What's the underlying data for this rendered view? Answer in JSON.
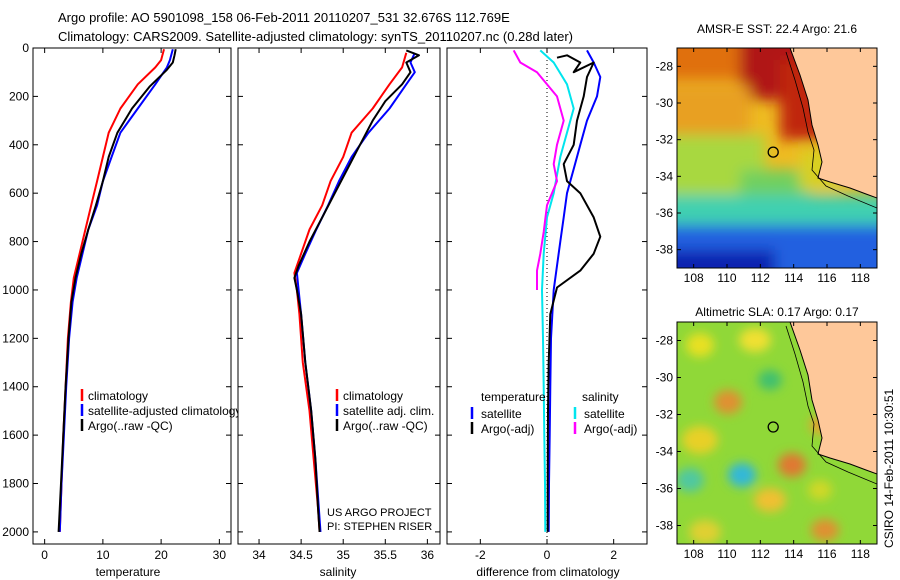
{
  "header": {
    "line1": "Argo profile: AO 5901098_158 06-Feb-2011 20110207_531 32.676S 112.769E",
    "line2": "Climatology: CARS2009. Satellite-adjusted climatology: synTS_20110207.nc (0.28d later)"
  },
  "side_stamp": "CSIRO 14-Feb-2011 10:30:51",
  "credit": {
    "line1": "US ARGO PROJECT",
    "line2": "PI: STEPHEN RISER"
  },
  "colors": {
    "red": "#ff0000",
    "blue": "#0000ff",
    "black": "#000000",
    "cyan": "#00e5ee",
    "magenta": "#ff00ff"
  },
  "chart_data": [
    {
      "type": "line",
      "id": "temperature-profile",
      "xlabel": "temperature",
      "ylabel": "",
      "xlim": [
        -2,
        32
      ],
      "ylim": [
        2050,
        0
      ],
      "xticks": [
        0,
        10,
        20,
        30
      ],
      "yticks": [
        0,
        200,
        400,
        600,
        800,
        1000,
        1200,
        1400,
        1600,
        1800,
        2000
      ],
      "legend": [
        "climatology",
        "satellite-adjusted climatology",
        "Argo(..raw -QC)"
      ],
      "series": [
        {
          "name": "climatology",
          "color": "red",
          "points": [
            [
              20.5,
              5
            ],
            [
              20,
              50
            ],
            [
              19,
              80
            ],
            [
              16,
              150
            ],
            [
              13,
              250
            ],
            [
              11,
              350
            ],
            [
              10,
              450
            ],
            [
              9,
              550
            ],
            [
              8,
              650
            ],
            [
              7,
              750
            ],
            [
              6,
              850
            ],
            [
              5,
              950
            ],
            [
              4.5,
              1050
            ],
            [
              4,
              1200
            ],
            [
              3.6,
              1400
            ],
            [
              3.2,
              1600
            ],
            [
              2.9,
              1800
            ],
            [
              2.6,
              2000
            ]
          ]
        },
        {
          "name": "satellite-adjusted climatology",
          "color": "blue",
          "points": [
            [
              22,
              5
            ],
            [
              21.5,
              50
            ],
            [
              21,
              80
            ],
            [
              19,
              150
            ],
            [
              16,
              250
            ],
            [
              13,
              350
            ],
            [
              11.5,
              450
            ],
            [
              10,
              550
            ],
            [
              9,
              650
            ],
            [
              7.5,
              750
            ],
            [
              6.5,
              850
            ],
            [
              5.5,
              950
            ],
            [
              4.8,
              1050
            ],
            [
              4.2,
              1200
            ],
            [
              3.7,
              1400
            ],
            [
              3.3,
              1600
            ],
            [
              2.9,
              1800
            ],
            [
              2.6,
              2000
            ]
          ]
        },
        {
          "name": "Argo(..raw -QC)",
          "color": "black",
          "points": [
            [
              22.5,
              5
            ],
            [
              22.3,
              30
            ],
            [
              22,
              60
            ],
            [
              21,
              90
            ],
            [
              18,
              160
            ],
            [
              15,
              250
            ],
            [
              12.5,
              350
            ],
            [
              11,
              450
            ],
            [
              10,
              550
            ],
            [
              8.8,
              650
            ],
            [
              7.5,
              750
            ],
            [
              6.3,
              850
            ],
            [
              5.3,
              950
            ],
            [
              4.6,
              1050
            ],
            [
              4.1,
              1200
            ],
            [
              3.6,
              1400
            ],
            [
              3.2,
              1600
            ],
            [
              2.8,
              1800
            ],
            [
              2.4,
              2000
            ]
          ]
        }
      ]
    },
    {
      "type": "line",
      "id": "salinity-profile",
      "xlabel": "salinity",
      "xlim": [
        33.75,
        36.15
      ],
      "ylim": [
        2050,
        0
      ],
      "xticks": [
        34,
        34.5,
        35,
        35.5,
        36
      ],
      "legend": [
        "climatology",
        "satellite adj. clim.",
        "Argo(..raw -QC)"
      ],
      "series": [
        {
          "name": "climatology",
          "color": "red",
          "points": [
            [
              35.75,
              20
            ],
            [
              35.7,
              80
            ],
            [
              35.55,
              150
            ],
            [
              35.35,
              250
            ],
            [
              35.1,
              350
            ],
            [
              35,
              450
            ],
            [
              34.85,
              550
            ],
            [
              34.75,
              650
            ],
            [
              34.6,
              750
            ],
            [
              34.5,
              850
            ],
            [
              34.42,
              930
            ],
            [
              34.45,
              1000
            ],
            [
              34.48,
              1100
            ],
            [
              34.52,
              1300
            ],
            [
              34.6,
              1500
            ],
            [
              34.65,
              1700
            ],
            [
              34.7,
              1900
            ],
            [
              34.72,
              2000
            ]
          ]
        },
        {
          "name": "satellite adj. clim.",
          "color": "blue",
          "points": [
            [
              35.85,
              20
            ],
            [
              35.8,
              60
            ],
            [
              35.85,
              100
            ],
            [
              35.75,
              150
            ],
            [
              35.55,
              250
            ],
            [
              35.3,
              350
            ],
            [
              35.1,
              450
            ],
            [
              34.95,
              550
            ],
            [
              34.82,
              650
            ],
            [
              34.68,
              750
            ],
            [
              34.55,
              850
            ],
            [
              34.45,
              930
            ],
            [
              34.47,
              1000
            ],
            [
              34.5,
              1100
            ],
            [
              34.55,
              1300
            ],
            [
              34.62,
              1500
            ],
            [
              34.67,
              1700
            ],
            [
              34.71,
              1900
            ],
            [
              34.73,
              2000
            ]
          ]
        },
        {
          "name": "Argo(..raw -QC)",
          "color": "black",
          "points": [
            [
              35.75,
              10
            ],
            [
              35.9,
              30
            ],
            [
              35.75,
              60
            ],
            [
              35.8,
              100
            ],
            [
              35.7,
              150
            ],
            [
              35.5,
              220
            ],
            [
              35.35,
              300
            ],
            [
              35.2,
              400
            ],
            [
              35.05,
              500
            ],
            [
              34.9,
              600
            ],
            [
              34.75,
              700
            ],
            [
              34.6,
              800
            ],
            [
              34.47,
              900
            ],
            [
              34.42,
              950
            ],
            [
              34.45,
              1000
            ],
            [
              34.5,
              1100
            ],
            [
              34.55,
              1300
            ],
            [
              34.62,
              1500
            ],
            [
              34.67,
              1700
            ],
            [
              34.7,
              1900
            ],
            [
              34.72,
              2000
            ]
          ]
        }
      ]
    },
    {
      "type": "line",
      "id": "difference-profile",
      "xlabel": "difference from climatology",
      "xlim": [
        -3,
        3
      ],
      "ylim": [
        2050,
        0
      ],
      "xticks": [
        -2,
        0,
        2
      ],
      "legend_titles": [
        "temperature",
        "salinity"
      ],
      "legend": [
        "satellite",
        "Argo(-adj)",
        "satellite",
        "Argo(-adj)"
      ],
      "series": [
        {
          "name": "satellite",
          "group": "temperature",
          "color": "blue",
          "points": [
            [
              1.2,
              10
            ],
            [
              1.4,
              60
            ],
            [
              1.6,
              120
            ],
            [
              1.5,
              200
            ],
            [
              1.2,
              300
            ],
            [
              1.0,
              400
            ],
            [
              0.8,
              500
            ],
            [
              0.6,
              600
            ],
            [
              0.5,
              700
            ],
            [
              0.4,
              800
            ],
            [
              0.3,
              900
            ],
            [
              0.2,
              1000
            ],
            [
              0.12,
              1200
            ],
            [
              0.1,
              1400
            ],
            [
              0.08,
              1600
            ],
            [
              0.06,
              1800
            ],
            [
              0.05,
              2000
            ]
          ]
        },
        {
          "name": "Argo(-adj)",
          "group": "temperature",
          "color": "black",
          "points": [
            [
              0.3,
              40
            ],
            [
              0.6,
              30
            ],
            [
              1.0,
              60
            ],
            [
              0.8,
              100
            ],
            [
              1.4,
              60
            ],
            [
              1.2,
              120
            ],
            [
              1.1,
              200
            ],
            [
              0.9,
              300
            ],
            [
              0.8,
              400
            ],
            [
              0.5,
              480
            ],
            [
              0.6,
              550
            ],
            [
              1.0,
              600
            ],
            [
              1.4,
              700
            ],
            [
              1.6,
              780
            ],
            [
              1.4,
              850
            ],
            [
              1.0,
              920
            ],
            [
              0.3,
              990
            ],
            [
              0.1,
              1100
            ],
            [
              0.05,
              1300
            ],
            [
              0.03,
              1500
            ],
            [
              0.02,
              1800
            ],
            [
              0.02,
              2000
            ]
          ]
        },
        {
          "name": "satellite",
          "group": "salinity",
          "color": "cyan",
          "points": [
            [
              -0.2,
              10
            ],
            [
              0.2,
              60
            ],
            [
              0.6,
              150
            ],
            [
              0.8,
              250
            ],
            [
              0.6,
              350
            ],
            [
              0.4,
              450
            ],
            [
              0.2,
              600
            ],
            [
              0,
              700
            ],
            [
              -0.1,
              850
            ],
            [
              -0.15,
              1000
            ],
            [
              -0.12,
              1200
            ],
            [
              -0.1,
              1400
            ],
            [
              -0.08,
              1600
            ],
            [
              -0.06,
              1800
            ],
            [
              -0.05,
              2000
            ]
          ]
        },
        {
          "name": "Argo(-adj)",
          "group": "salinity",
          "color": "magenta",
          "points": [
            [
              -1.0,
              10
            ],
            [
              -0.8,
              60
            ],
            [
              -0.3,
              100
            ],
            [
              0.3,
              200
            ],
            [
              0.5,
              300
            ],
            [
              0.3,
              400
            ],
            [
              0.2,
              480
            ],
            [
              0.3,
              550
            ],
            [
              0,
              650
            ],
            [
              -0.1,
              760
            ],
            [
              -0.2,
              850
            ],
            [
              -0.3,
              920
            ],
            [
              -0.3,
              1000
            ]
          ]
        }
      ]
    },
    {
      "type": "heatmap",
      "id": "sst-map",
      "title": "AMSR-E SST: 22.4 Argo: 21.6",
      "xlim": [
        107,
        119
      ],
      "ylim": [
        -39,
        -27
      ],
      "xticks": [
        108,
        110,
        112,
        114,
        116,
        118
      ],
      "yticks": [
        -28,
        -30,
        -32,
        -34,
        -36,
        -38
      ],
      "argo_position": [
        112.769,
        -32.676
      ]
    },
    {
      "type": "heatmap",
      "id": "sla-map",
      "title": "Altimetric SLA: 0.17 Argo: 0.17",
      "xlim": [
        107,
        119
      ],
      "ylim": [
        -39,
        -27
      ],
      "xticks": [
        108,
        110,
        112,
        114,
        116,
        118
      ],
      "yticks": [
        -28,
        -30,
        -32,
        -34,
        -36,
        -38
      ],
      "argo_position": [
        112.769,
        -32.676
      ]
    }
  ]
}
